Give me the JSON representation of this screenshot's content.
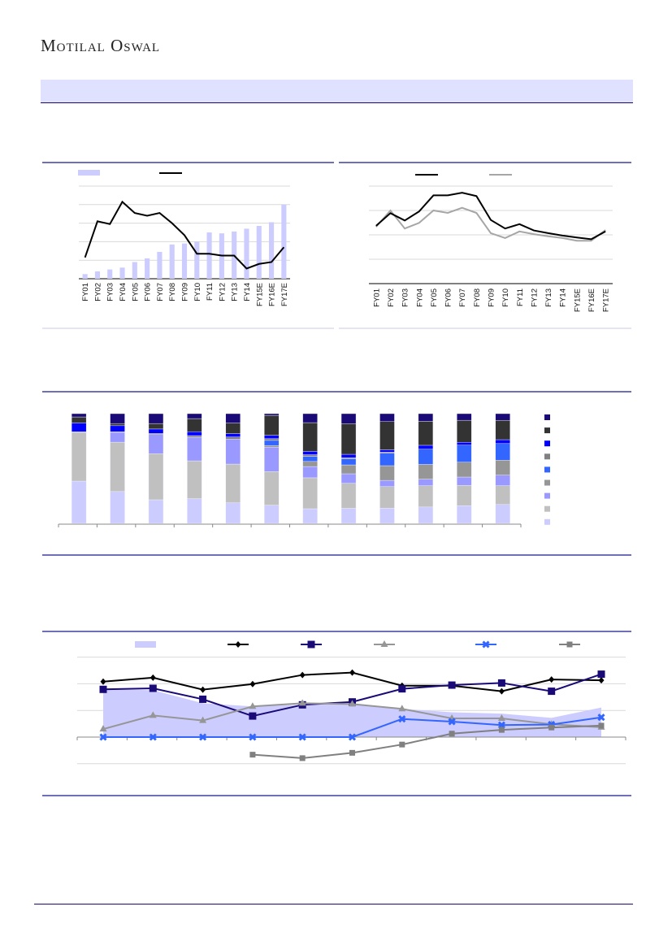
{
  "header": {
    "logo_text": "Motilal Oswal"
  },
  "colors": {
    "band": "#e0e0ff",
    "rule": "#6f6fb8",
    "navy": "#1a0a78"
  },
  "chart_data": [
    {
      "type": "bar+line",
      "categories": [
        "FY01",
        "FY02",
        "FY03",
        "FY04",
        "FY05",
        "FY06",
        "FY07",
        "FY08",
        "FY09",
        "FY10",
        "FY11",
        "FY12",
        "FY13",
        "FY14",
        "FY15E",
        "FY16E",
        "FY17E"
      ],
      "ylim": [
        0,
        100
      ],
      "grid": true,
      "series": [
        {
          "name": "",
          "kind": "bar",
          "color": "#ccccff",
          "values": [
            5,
            8,
            10,
            12,
            18,
            22,
            29,
            37,
            38,
            40,
            50,
            49,
            51,
            54,
            57,
            61,
            80
          ]
        },
        {
          "name": "",
          "kind": "line",
          "color": "#000000",
          "values": [
            23,
            62,
            59,
            83,
            71,
            68,
            71,
            60,
            47,
            27,
            27,
            25,
            25,
            11,
            16,
            18,
            34
          ]
        }
      ]
    },
    {
      "type": "line",
      "categories": [
        "FY01",
        "FY02",
        "FY03",
        "FY04",
        "FY05",
        "FY06",
        "FY07",
        "FY08",
        "FY09",
        "FY10",
        "FY11",
        "FY12",
        "FY13",
        "FY14",
        "FY15E",
        "FY16E",
        "FY17E"
      ],
      "ylim": [
        0,
        4
      ],
      "grid": true,
      "series": [
        {
          "name": "",
          "color": "#000000",
          "values": [
            2.37,
            2.89,
            2.59,
            2.96,
            3.62,
            3.62,
            3.73,
            3.59,
            2.61,
            2.26,
            2.44,
            2.18,
            2.07,
            1.97,
            1.89,
            1.82,
            2.14
          ]
        },
        {
          "name": "",
          "color": "#a6a6a6",
          "values": [
            2.33,
            3.0,
            2.26,
            2.49,
            3.0,
            2.9,
            3.11,
            2.9,
            2.07,
            1.87,
            2.14,
            2.03,
            1.94,
            1.87,
            1.76,
            1.76,
            2.2
          ]
        }
      ]
    },
    {
      "type": "stacked-bar",
      "ylim": [
        0,
        100
      ],
      "legend": "right",
      "colors": [
        "#ccccff",
        "#c0c0c0",
        "#9999ff",
        "#969696",
        "#3366ff",
        "#808080",
        "#0000ff",
        "#333333",
        "#1a0a78"
      ],
      "bars": [
        [
          38.5,
          44.5,
          0,
          0,
          0,
          0.5,
          8,
          5.5,
          3
        ],
        [
          29,
          45,
          9,
          0,
          0,
          0.5,
          5.5,
          2,
          9
        ],
        [
          21.5,
          42,
          17.5,
          0,
          0,
          1,
          4,
          5,
          9
        ],
        [
          22.5,
          34.5,
          21.5,
          0,
          0,
          1.5,
          3.5,
          12,
          4.5
        ],
        [
          18.5,
          35,
          22.5,
          0,
          0,
          2,
          3,
          9.5,
          8.5
        ],
        [
          16,
          29.5,
          21.5,
          1.5,
          4.5,
          1.5,
          3,
          17.5,
          1.5
        ],
        [
          13,
          27.5,
          10,
          4.5,
          4.5,
          1.5,
          3,
          25.5,
          8
        ],
        [
          13.5,
          22.5,
          8.5,
          8,
          5.5,
          1,
          3,
          27.5,
          9
        ],
        [
          13.5,
          19,
          5.5,
          13,
          11,
          1,
          2,
          25,
          7
        ],
        [
          15,
          19.5,
          6,
          13.5,
          14,
          0,
          3.5,
          22,
          7
        ],
        [
          16,
          18.5,
          7.5,
          13.5,
          15.5,
          0,
          2.5,
          20,
          6
        ],
        [
          17,
          17,
          9.5,
          13.5,
          15,
          0,
          3.5,
          17.5,
          6
        ]
      ]
    },
    {
      "type": "line+area",
      "ylim": [
        -1,
        3
      ],
      "grid": true,
      "points": 11,
      "series": [
        {
          "name": "",
          "kind": "area",
          "color": "#ccccff",
          "values": [
            1.79,
            1.76,
            1.27,
            1.15,
            1.21,
            1.27,
            1.06,
            0.93,
            0.88,
            0.72,
            1.11
          ]
        },
        {
          "name": "",
          "marker": "diamond",
          "color": "#000000",
          "values": [
            2.08,
            2.23,
            1.78,
            1.99,
            2.33,
            2.42,
            1.93,
            1.93,
            1.72,
            2.16,
            2.13
          ]
        },
        {
          "name": "",
          "marker": "square",
          "color": "#1a0a78",
          "values": [
            1.79,
            1.83,
            1.42,
            0.79,
            1.21,
            1.32,
            1.81,
            1.95,
            2.03,
            1.72,
            2.36
          ]
        },
        {
          "name": "",
          "marker": "triangle",
          "color": "#969696",
          "values": [
            0.3,
            0.81,
            0.62,
            1.15,
            1.27,
            1.24,
            1.06,
            0.7,
            0.7,
            0.48,
            0.37
          ]
        },
        {
          "name": "",
          "marker": "x",
          "color": "#3366ff",
          "values": [
            0,
            0,
            0,
            0,
            0,
            0,
            0.68,
            0.58,
            0.45,
            0.47,
            0.74
          ]
        },
        {
          "name": "",
          "marker": "square-small",
          "color": "#808080",
          "values": [
            null,
            null,
            null,
            -0.66,
            -0.79,
            -0.59,
            -0.28,
            0.13,
            0.27,
            0.36,
            0.43
          ]
        }
      ]
    }
  ]
}
